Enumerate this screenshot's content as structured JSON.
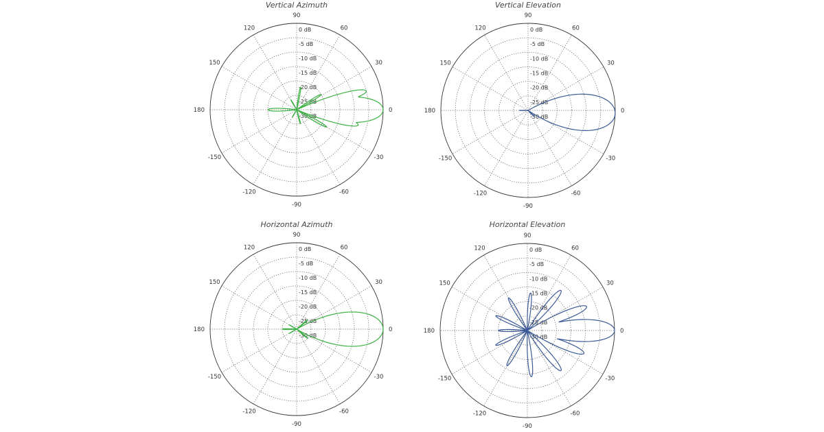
{
  "chart_data": [
    {
      "type": "polar",
      "title": "Vertical Azimuth",
      "color": "#3cb043",
      "angle_labels": [
        "0",
        "30",
        "60",
        "90",
        "120",
        "150",
        "180",
        "-150",
        "-120",
        "-90",
        "-60",
        "-30"
      ],
      "radial_labels": [
        "0 dB",
        "-5 dB",
        "-10 dB",
        "-15 dB",
        "-20 dB",
        "-25 dB",
        "-30 dB"
      ],
      "rlim_db": [
        -30,
        0
      ],
      "lobes": [
        {
          "center_deg": 0,
          "width_deg": 14,
          "peak_db": 0
        },
        {
          "center_deg": 15,
          "width_deg": 6,
          "peak_db": -5
        },
        {
          "center_deg": -14,
          "width_deg": 6,
          "peak_db": -8
        },
        {
          "center_deg": 32,
          "width_deg": 5,
          "peak_db": -20
        },
        {
          "center_deg": -30,
          "width_deg": 5,
          "peak_db": -18
        },
        {
          "center_deg": 80,
          "width_deg": 5,
          "peak_db": -22
        },
        {
          "center_deg": -75,
          "width_deg": 5,
          "peak_db": -25
        },
        {
          "center_deg": 120,
          "width_deg": 5,
          "peak_db": -26
        },
        {
          "center_deg": -120,
          "width_deg": 5,
          "peak_db": -27
        },
        {
          "center_deg": 180,
          "width_deg": 8,
          "peak_db": -20
        }
      ]
    },
    {
      "type": "polar",
      "title": "Vertical Elevation",
      "color": "#3c5a96",
      "angle_labels": [
        "0",
        "30",
        "60",
        "90",
        "120",
        "150",
        "180",
        "-150",
        "-120",
        "-90",
        "-60",
        "-30"
      ],
      "radial_labels": [
        "0 dB",
        "-5 dB",
        "-10 dB",
        "-15 dB",
        "-20 dB",
        "-25 dB",
        "-30 dB"
      ],
      "rlim_db": [
        -30,
        0
      ],
      "lobes": [
        {
          "center_deg": -2,
          "width_deg": 20,
          "peak_db": 0
        },
        {
          "center_deg": 180,
          "width_deg": 4,
          "peak_db": -27
        },
        {
          "center_deg": -45,
          "width_deg": 6,
          "peak_db": -27
        }
      ]
    },
    {
      "type": "polar",
      "title": "Horizontal Azimuth",
      "color": "#3cb043",
      "angle_labels": [
        "0",
        "30",
        "60",
        "90",
        "120",
        "150",
        "180",
        "-150",
        "-120",
        "-90",
        "-60",
        "-30"
      ],
      "radial_labels": [
        "0 dB",
        "-5 dB",
        "-10 dB",
        "-15 dB",
        "-20 dB",
        "-25 dB",
        "-30 dB"
      ],
      "rlim_db": [
        -30,
        0
      ],
      "lobes": [
        {
          "center_deg": 0,
          "width_deg": 19,
          "peak_db": 0
        },
        {
          "center_deg": 40,
          "width_deg": 5,
          "peak_db": -25
        },
        {
          "center_deg": -40,
          "width_deg": 5,
          "peak_db": -25
        },
        {
          "center_deg": 180,
          "width_deg": 6,
          "peak_db": -25
        },
        {
          "center_deg": 150,
          "width_deg": 5,
          "peak_db": -27
        },
        {
          "center_deg": -150,
          "width_deg": 5,
          "peak_db": -27
        }
      ]
    },
    {
      "type": "polar",
      "title": "Horizontal Elevation",
      "color": "#3c5a96",
      "angle_labels": [
        "0",
        "30",
        "60",
        "90",
        "120",
        "150",
        "180",
        "-150",
        "-120",
        "-90",
        "-60",
        "-30"
      ],
      "radial_labels": [
        "0 dB",
        "-5 dB",
        "-10 dB",
        "-15 dB",
        "-20 dB",
        "-25 dB",
        "-30 dB"
      ],
      "rlim_db": [
        -30,
        0
      ],
      "lobes": [
        {
          "center_deg": 0,
          "width_deg": 12,
          "peak_db": 0
        },
        {
          "center_deg": 22,
          "width_deg": 7,
          "peak_db": -8
        },
        {
          "center_deg": -22,
          "width_deg": 7,
          "peak_db": -9
        },
        {
          "center_deg": 50,
          "width_deg": 7,
          "peak_db": -12
        },
        {
          "center_deg": -50,
          "width_deg": 7,
          "peak_db": -12
        },
        {
          "center_deg": 85,
          "width_deg": 6,
          "peak_db": -17
        },
        {
          "center_deg": -85,
          "width_deg": 6,
          "peak_db": -14
        },
        {
          "center_deg": 120,
          "width_deg": 6,
          "peak_db": -17
        },
        {
          "center_deg": -120,
          "width_deg": 6,
          "peak_db": -16
        },
        {
          "center_deg": 155,
          "width_deg": 6,
          "peak_db": -18
        },
        {
          "center_deg": -155,
          "width_deg": 6,
          "peak_db": -18
        },
        {
          "center_deg": 180,
          "width_deg": 6,
          "peak_db": -20
        }
      ]
    }
  ]
}
